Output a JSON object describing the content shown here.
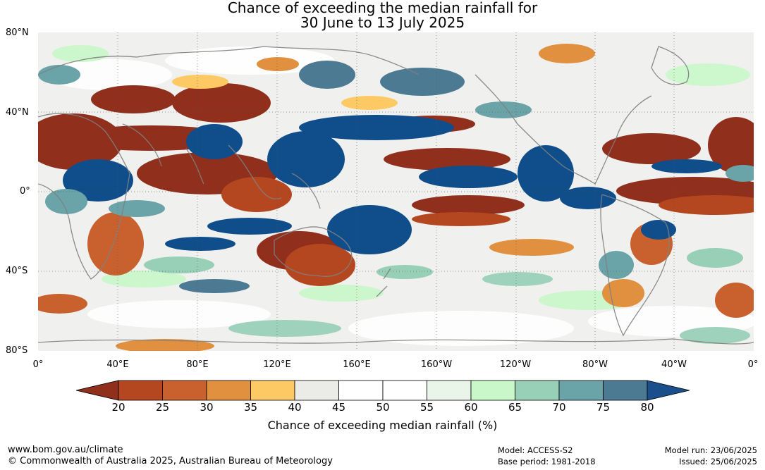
{
  "title": {
    "line1": "Chance of exceeding the median rainfall for",
    "line2": "30 June to 13 July 2025"
  },
  "lat_ticks": [
    "80°N",
    "40°N",
    "0°",
    "40°S",
    "80°S"
  ],
  "lon_ticks": [
    "0°",
    "40°E",
    "80°E",
    "120°E",
    "160°E",
    "160°W",
    "120°W",
    "80°W",
    "40°W",
    "0°"
  ],
  "colorbar": {
    "ticks": [
      "20",
      "25",
      "30",
      "35",
      "40",
      "45",
      "50",
      "55",
      "60",
      "65",
      "70",
      "75",
      "80"
    ],
    "colors": [
      "#8f2f1c",
      "#b4471f",
      "#c8612e",
      "#e0903f",
      "#fdc964",
      "#ebebe7",
      "#ffffff",
      "#ffffff",
      "#e8f5e8",
      "#c9f7c9",
      "#97cfb7",
      "#6aa3a8",
      "#4b7a92",
      "#104e8b",
      "#1a4f8c"
    ],
    "label": "Chance of exceeding median rainfall (%)"
  },
  "footer": {
    "site": "www.bom.gov.au/climate",
    "copyright": "© Commonwealth of Australia 2025, Australian Bureau of Meteorology",
    "model": "Model: ACCESS-S2",
    "base_period": "Base period: 1981-2018",
    "model_run": "Model run: 23/06/2025",
    "issued": "Issued: 25/06/2025"
  }
}
